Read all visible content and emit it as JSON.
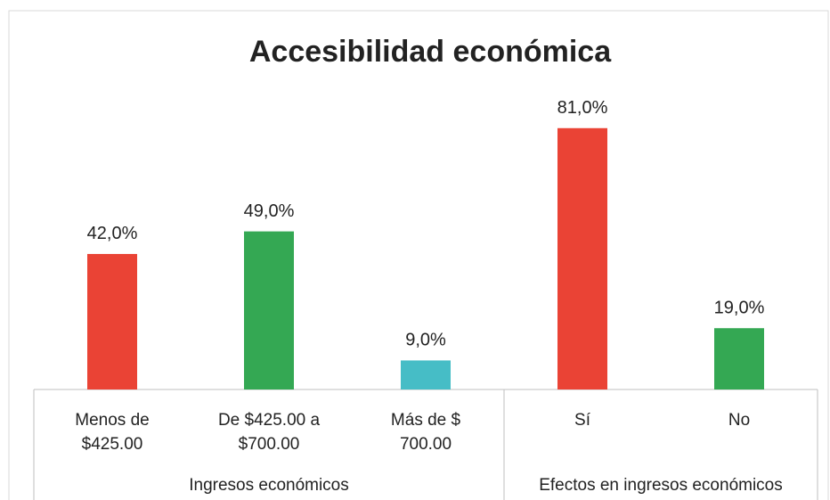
{
  "chart_data": {
    "type": "bar",
    "title": "Accesibilidad económica",
    "groups": [
      {
        "name": "Ingresos económicos",
        "categories": [
          [
            "Menos de",
            "$425.00"
          ],
          [
            "De $425.00 a",
            "$700.00"
          ],
          [
            "Más de $",
            "700.00"
          ]
        ],
        "values": [
          42,
          49,
          9
        ],
        "value_labels": [
          "42,0%",
          "49,0%",
          "9,0%"
        ],
        "colors": [
          "#ea4335",
          "#34a853",
          "#46bdc6"
        ]
      },
      {
        "name": "Efectos en ingresos económicos",
        "categories": [
          [
            "Sí"
          ],
          [
            "No"
          ]
        ],
        "values": [
          81,
          19
        ],
        "value_labels": [
          "81,0%",
          "19,0%"
        ],
        "colors": [
          "#ea4335",
          "#34a853"
        ]
      }
    ]
  }
}
